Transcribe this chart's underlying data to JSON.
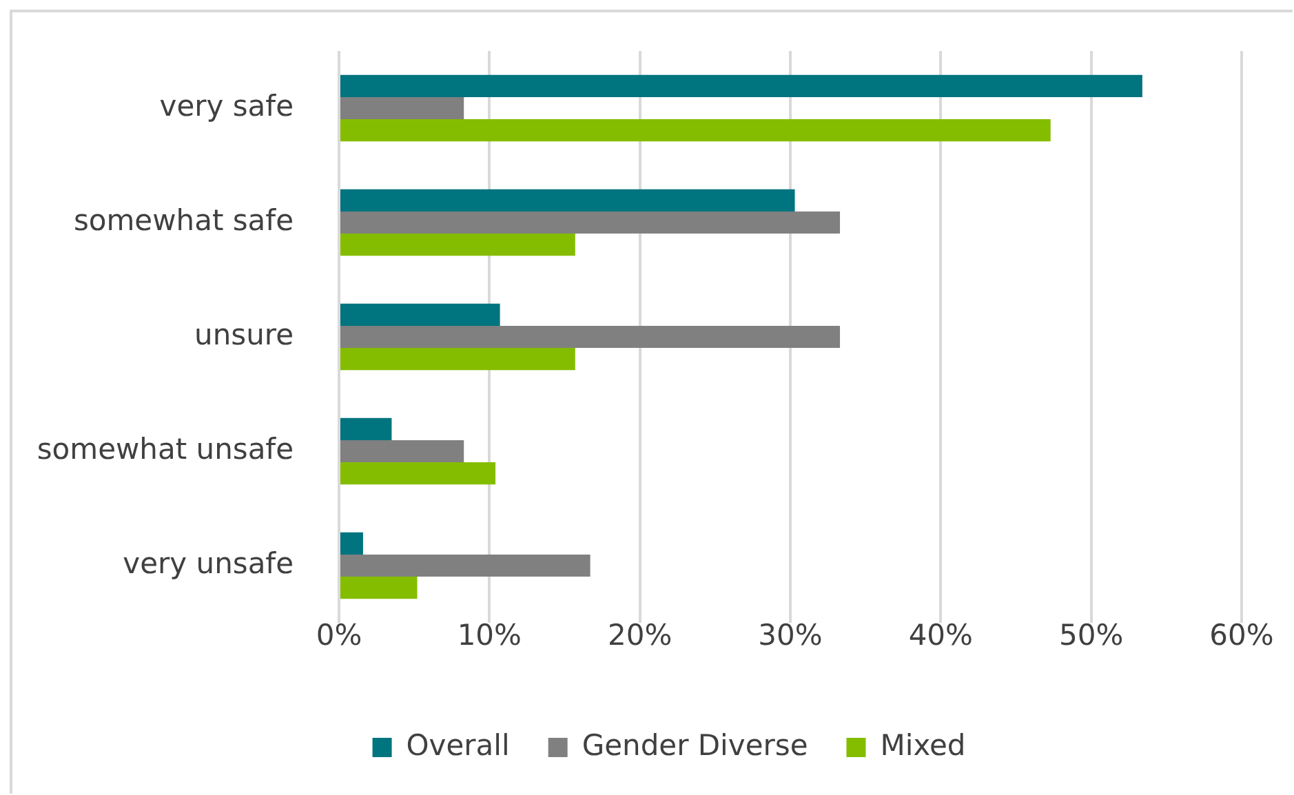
{
  "chart_data": {
    "type": "bar",
    "orientation": "horizontal",
    "categories": [
      "very safe",
      "somewhat safe",
      "unsure",
      "somewhat unsafe",
      "very unsafe"
    ],
    "series": [
      {
        "name": "Overall",
        "color": "#00747f",
        "values": [
          53.4,
          30.3,
          10.7,
          3.5,
          1.6
        ]
      },
      {
        "name": "Gender Diverse",
        "color": "#808080",
        "values": [
          8.3,
          33.3,
          33.3,
          8.3,
          16.7
        ]
      },
      {
        "name": "Mixed",
        "color": "#84bd00",
        "values": [
          47.3,
          15.7,
          15.7,
          10.4,
          5.2
        ]
      }
    ],
    "xlim": [
      0,
      60
    ],
    "xticks": [
      {
        "value": 0,
        "label": "0%"
      },
      {
        "value": 10,
        "label": "10%"
      },
      {
        "value": 20,
        "label": "20%"
      },
      {
        "value": 30,
        "label": "30%"
      },
      {
        "value": 40,
        "label": "40%"
      },
      {
        "value": 50,
        "label": "50%"
      },
      {
        "value": 60,
        "label": "60%"
      }
    ],
    "grid": "x",
    "legend": "bottom"
  }
}
